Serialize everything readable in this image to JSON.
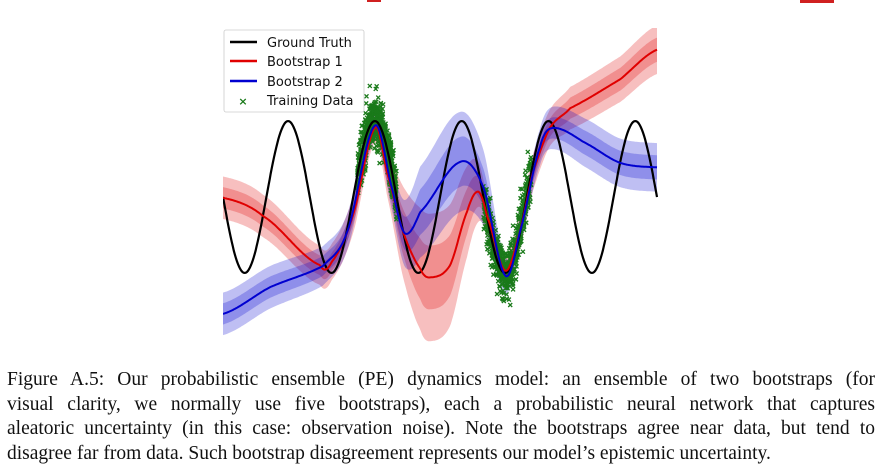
{
  "figure": {
    "caption_lines": [
      "Figure A.5: Our probabilistic ensemble (PE) dynamics model: an ensemble of two bootstraps (for",
      "visual clarity, we normally use five bootstraps), each a probabilistic neural network that captures",
      "aleatoric uncertainty (in this case: observation noise). Note the bootstraps agree near data, but tend to",
      "disagree far from data. Such bootstrap disagreement represents our model’s epistemic uncertainty."
    ]
  },
  "chart_data": {
    "type": "line",
    "title": "",
    "xlabel": "",
    "ylabel": "",
    "axes_visible": false,
    "grid": false,
    "legend_placement": "top-left",
    "xlim": [
      0,
      10
    ],
    "ylim": [
      -1.95,
      2.2
    ],
    "legend": [
      "Ground Truth",
      "Bootstrap 1",
      "Bootstrap 2",
      "Training Data"
    ],
    "ground_truth": {
      "name": "Ground Truth",
      "color": "#000000",
      "function": "y = -sin(pi*x)"
    },
    "series": [
      {
        "name": "Bootstrap 1",
        "color": "#e00000",
        "x": [
          0,
          0.92,
          2.24,
          2.51,
          2.99,
          3.5,
          3.78,
          4.15,
          4.54,
          4.77,
          5.23,
          5.62,
          5.88,
          6.08,
          6.5,
          6.84,
          7.14,
          7.53,
          8.0,
          9.15,
          10.0
        ],
        "mean": [
          -0.01,
          -0.25,
          -0.9,
          -0.85,
          -0.25,
          0.91,
          0.32,
          -0.46,
          -0.94,
          -1.06,
          -0.9,
          -0.2,
          0.07,
          -0.25,
          -0.97,
          -0.46,
          0.32,
          0.91,
          1.17,
          1.55,
          1.94
        ],
        "std": [
          0.14,
          0.14,
          0.13,
          0.12,
          0.12,
          0.1,
          0.15,
          0.3,
          0.4,
          0.42,
          0.4,
          0.3,
          0.2,
          0.12,
          0.1,
          0.12,
          0.12,
          0.12,
          0.14,
          0.15,
          0.16
        ]
      },
      {
        "name": "Bootstrap 2",
        "color": "#0000d0",
        "x": [
          0,
          1.08,
          2.3,
          2.86,
          3.5,
          3.92,
          4.19,
          4.54,
          5.46,
          5.99,
          6.5,
          6.84,
          7.3,
          7.6,
          8.39,
          9.15,
          10.0
        ],
        "mean": [
          -1.54,
          -1.19,
          -0.91,
          -0.46,
          0.94,
          0.06,
          -0.48,
          -0.2,
          0.46,
          0.14,
          -1.03,
          -0.46,
          0.65,
          0.91,
          0.7,
          0.45,
          0.39
        ],
        "std": [
          0.14,
          0.14,
          0.13,
          0.12,
          0.1,
          0.15,
          0.22,
          0.3,
          0.33,
          0.25,
          0.12,
          0.1,
          0.12,
          0.14,
          0.16,
          0.16,
          0.16
        ]
      }
    ],
    "training_data": {
      "name": "Training Data",
      "color": "#1a7a1a",
      "marker": "x",
      "x_ranges": [
        [
          3.1,
          4.0
        ],
        [
          6.0,
          7.1
        ]
      ]
    }
  }
}
